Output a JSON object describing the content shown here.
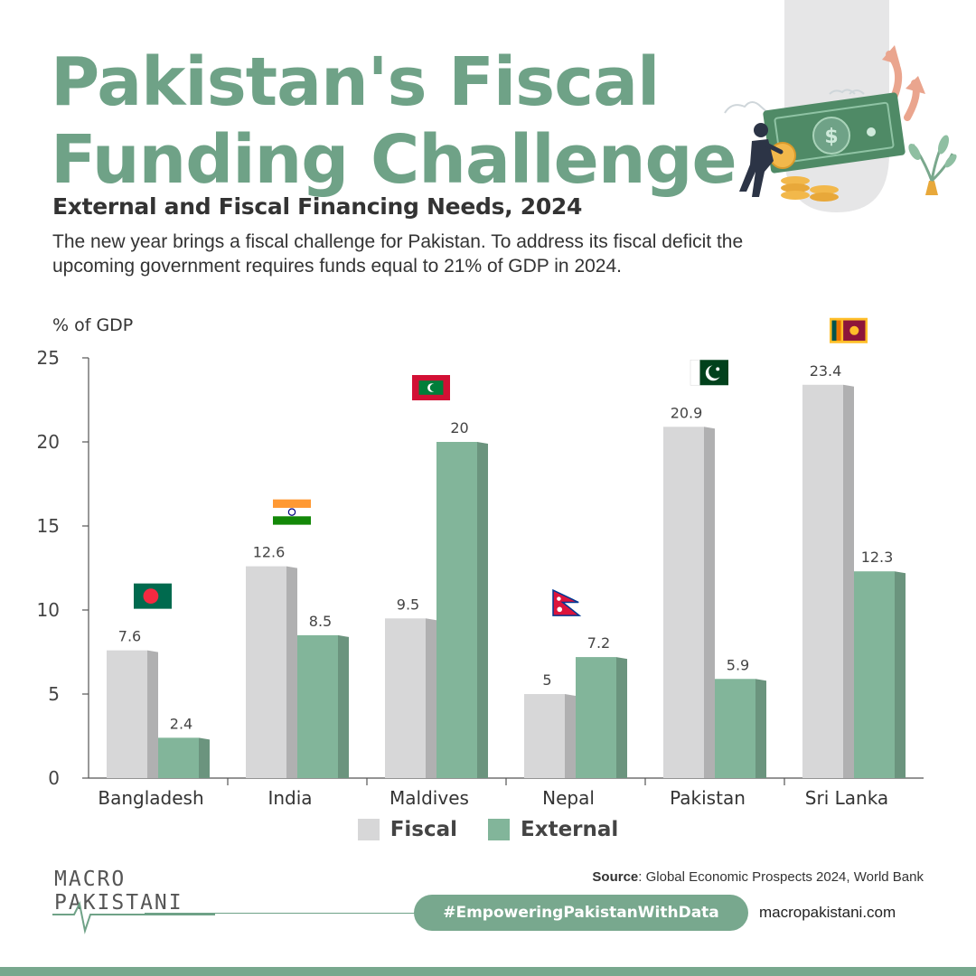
{
  "title_line1": "Pakistan's Fiscal",
  "title_line2": "Funding Challenge",
  "subtitle": "External and Fiscal Financing Needs, 2024",
  "description": "The new year brings a fiscal challenge for Pakistan. To address its fiscal deficit the upcoming government requires funds equal to 21% of GDP in 2024.",
  "source_label": "Source",
  "source_text": ": Global Economic Prospects 2024, World Bank",
  "logo": {
    "line1": "MACRO",
    "line2": "PAKISTANI"
  },
  "hashtag": "#EmpoweringPakistanWithData",
  "website": "macropakistani.com",
  "colors": {
    "accent": "#6fa287",
    "fiscal": "#d7d7d8",
    "external": "#82b59a"
  },
  "chart_data": {
    "type": "bar",
    "title": "External and Fiscal Financing Needs, 2024",
    "ylabel": "% of GDP",
    "xlabel": "",
    "ylim": [
      0,
      25
    ],
    "yticks": [
      0,
      5,
      10,
      15,
      20,
      25
    ],
    "categories": [
      "Bangladesh",
      "India",
      "Maldives",
      "Nepal",
      "Pakistan",
      "Sri Lanka"
    ],
    "series": [
      {
        "name": "Fiscal",
        "color": "#d7d7d8",
        "values": [
          7.6,
          12.6,
          9.5,
          5,
          20.9,
          23.4
        ]
      },
      {
        "name": "External",
        "color": "#82b59a",
        "values": [
          2.4,
          8.5,
          20,
          7.2,
          5.9,
          12.3
        ]
      }
    ],
    "flags": [
      "bangladesh-flag",
      "india-flag",
      "maldives-flag",
      "nepal-flag",
      "pakistan-flag",
      "sri-lanka-flag"
    ],
    "grid": false,
    "legend_position": "bottom-center"
  }
}
